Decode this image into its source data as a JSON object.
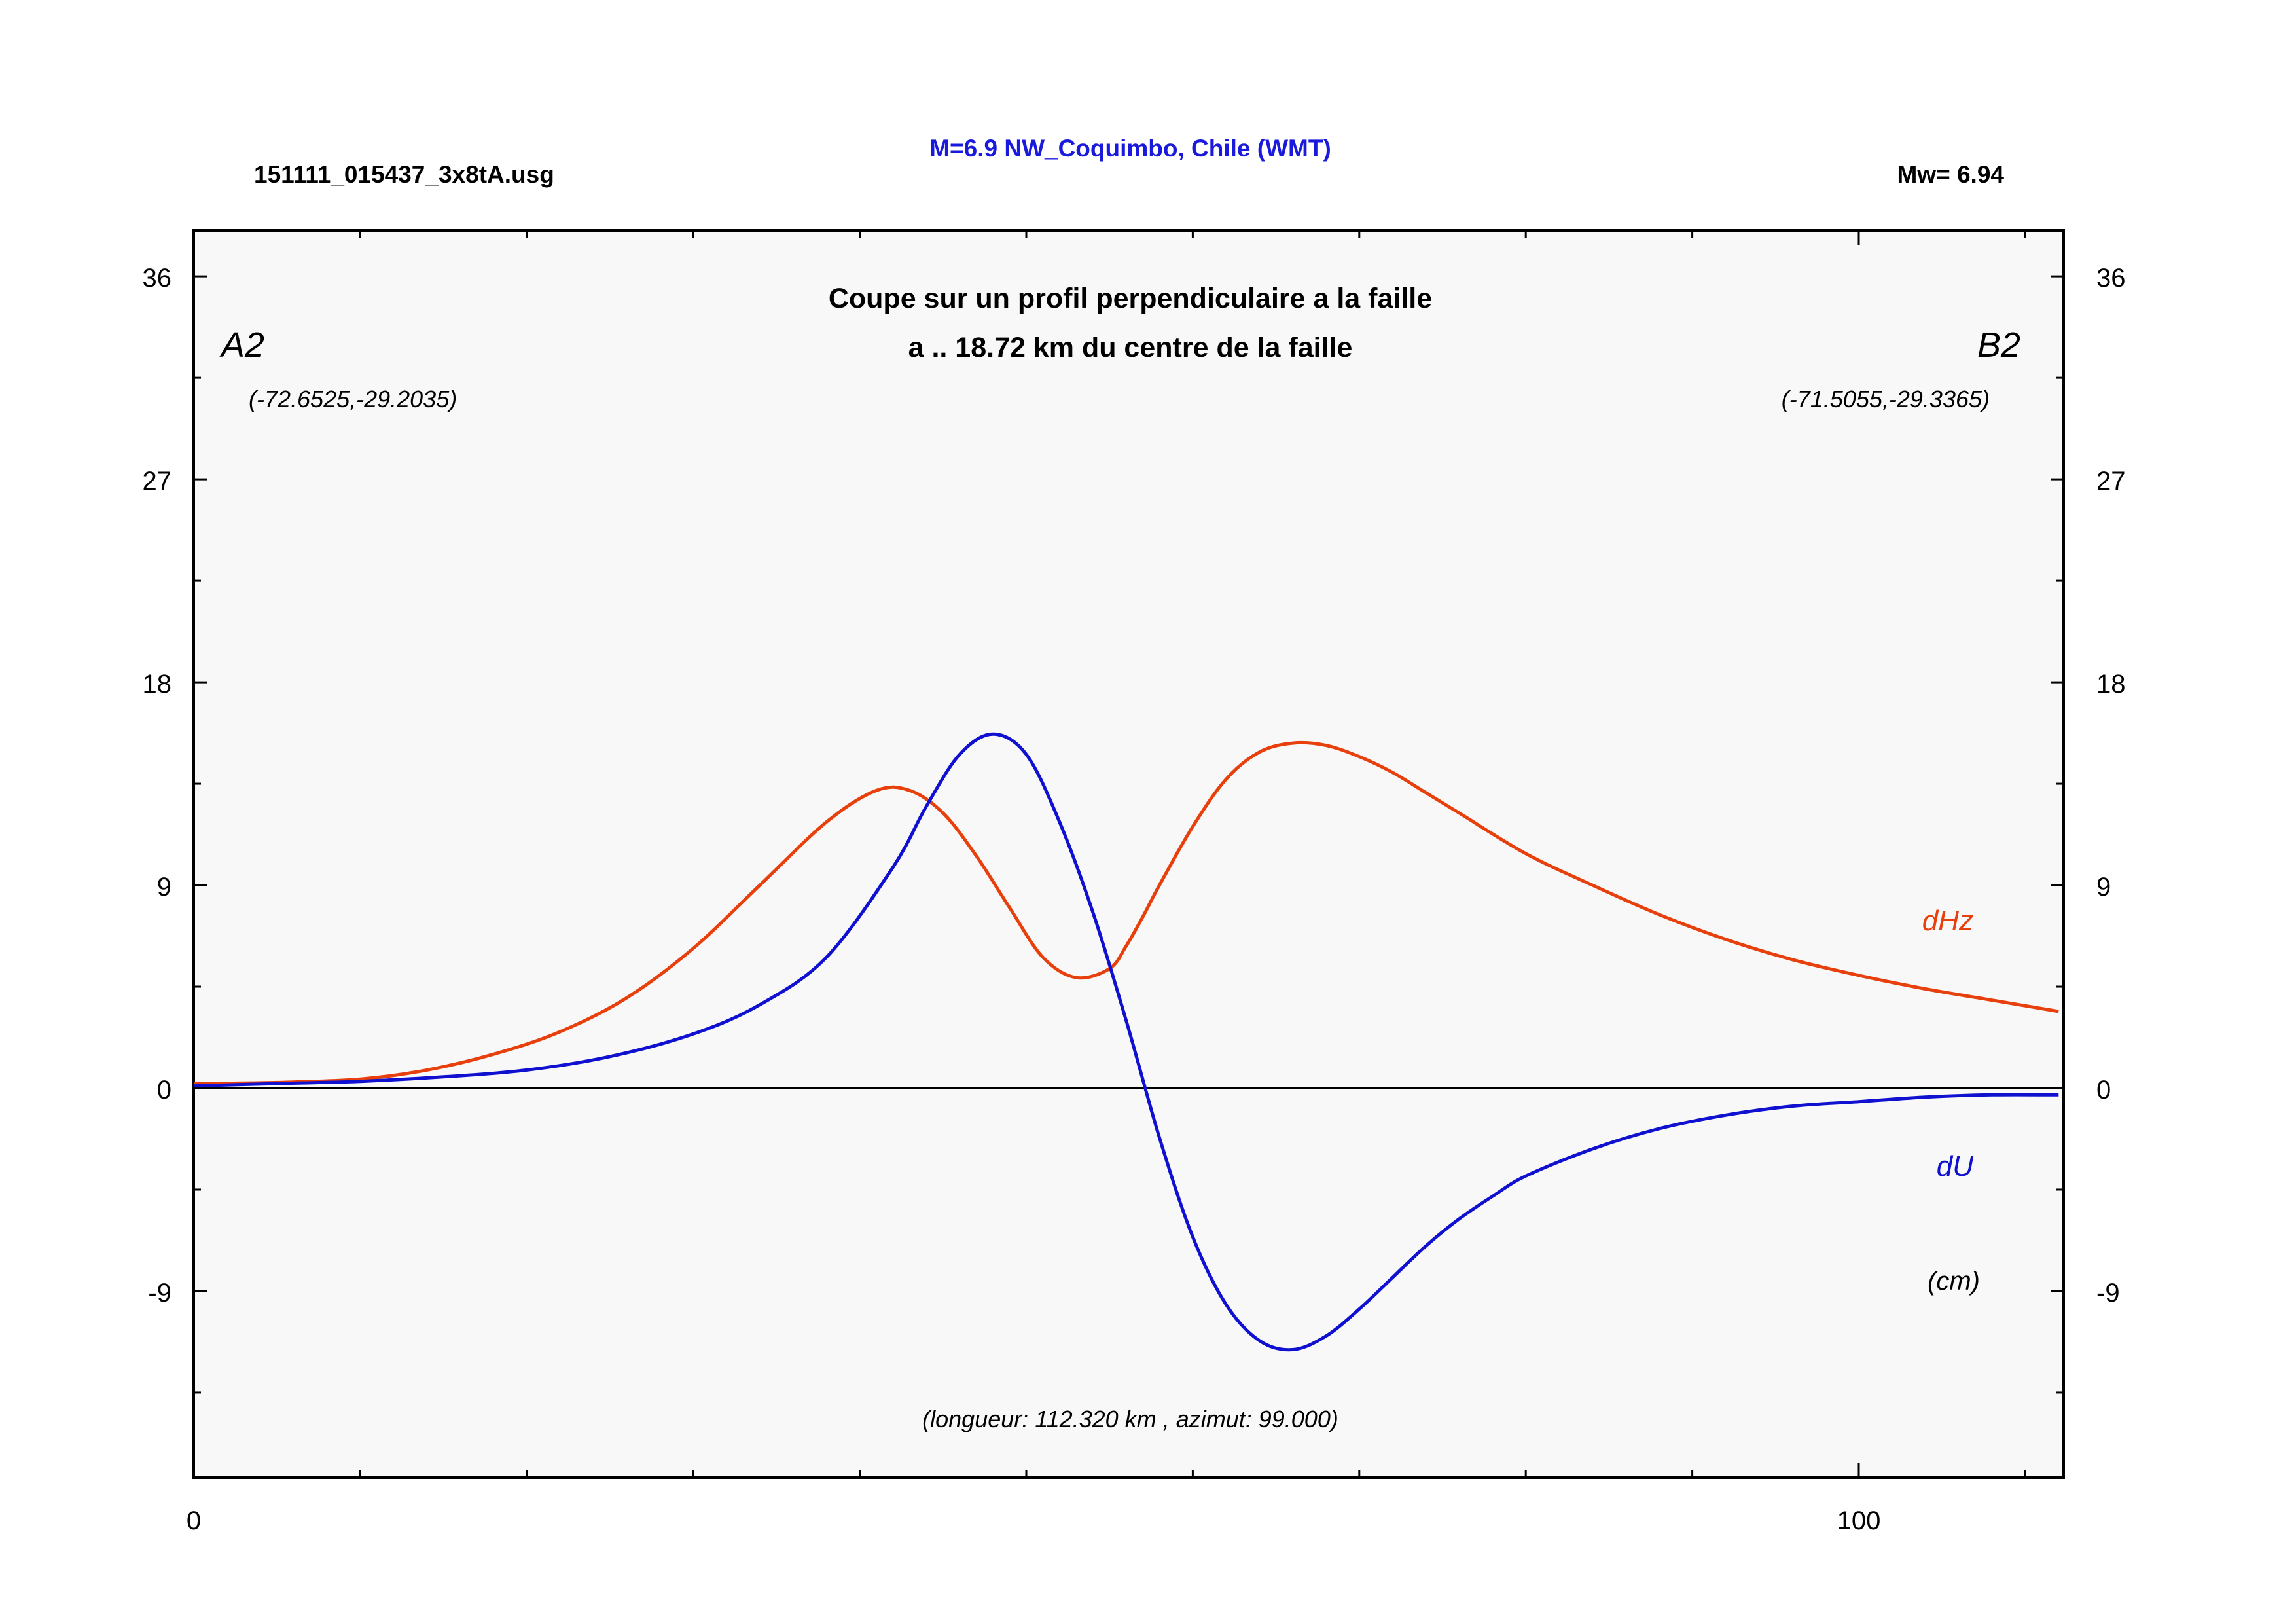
{
  "header": {
    "file_name": "151111_015437_3x8tA.usg",
    "event_title": "M=6.9 NW_Coquimbo, Chile (WMT)",
    "magnitude": "Mw= 6.94"
  },
  "plot": {
    "title_line1": "Coupe sur un profil perpendiculaire a la faille",
    "title_line2": "a .. 18.72 km du centre de la faille",
    "endpoint_a_label": "A2",
    "endpoint_a_coords": "(-72.6525,-29.2035)",
    "endpoint_b_label": "B2",
    "endpoint_b_coords": "(-71.5055,-29.3365)",
    "footer_note": "(longueur: 112.320 km , azimut: 99.000)",
    "unit_label": "(cm)",
    "y_ticks": [
      "36",
      "27",
      "18",
      "9",
      "0",
      "-9"
    ],
    "x_ticks": [
      "0",
      "100"
    ]
  },
  "colors": {
    "dHz": "#e8400c",
    "dU": "#1010d0",
    "title_blue": "#1a1adc",
    "background": "#f8f8f8"
  },
  "chart_data": {
    "type": "line",
    "x_range": [
      0,
      112.32
    ],
    "ylim": [
      -17.4,
      38
    ],
    "grid": false,
    "zero_line": true,
    "series": [
      {
        "name": "dHz",
        "x": [
          0,
          5,
          10,
          14,
          18,
          22,
          26,
          30,
          34,
          38,
          41,
          43,
          45,
          47,
          49,
          51,
          53,
          55,
          56,
          57,
          58,
          60,
          62,
          64,
          66,
          68,
          70,
          72,
          74,
          76,
          80,
          84,
          88,
          92,
          96,
          100,
          104,
          108,
          112
        ],
        "y": [
          0.2,
          0.25,
          0.4,
          0.8,
          1.5,
          2.5,
          4.0,
          6.2,
          9.0,
          11.8,
          13.2,
          13.2,
          12.2,
          10.3,
          8.0,
          5.8,
          4.9,
          5.3,
          6.3,
          7.6,
          9.0,
          11.6,
          13.7,
          14.9,
          15.3,
          15.2,
          14.7,
          14.0,
          13.1,
          12.2,
          10.4,
          9.0,
          7.7,
          6.6,
          5.7,
          5.0,
          4.4,
          3.9,
          3.4
        ]
      },
      {
        "name": "dU",
        "x": [
          0,
          5,
          10,
          15,
          20,
          25,
          30,
          34,
          38,
          42,
          44,
          46,
          48,
          50,
          52,
          54,
          56,
          58,
          60,
          62,
          64,
          66,
          68,
          70,
          72,
          74,
          76,
          78,
          80,
          84,
          88,
          92,
          96,
          100,
          104,
          108,
          112
        ],
        "y": [
          0.1,
          0.2,
          0.3,
          0.5,
          0.8,
          1.4,
          2.4,
          3.7,
          5.8,
          9.8,
          12.5,
          14.8,
          15.7,
          14.8,
          11.8,
          7.8,
          3.0,
          -2.2,
          -6.6,
          -9.6,
          -11.2,
          -11.6,
          -11.0,
          -9.8,
          -8.4,
          -7.0,
          -5.8,
          -4.8,
          -3.9,
          -2.7,
          -1.8,
          -1.2,
          -0.8,
          -0.6,
          -0.4,
          -0.3,
          -0.3
        ]
      }
    ]
  }
}
